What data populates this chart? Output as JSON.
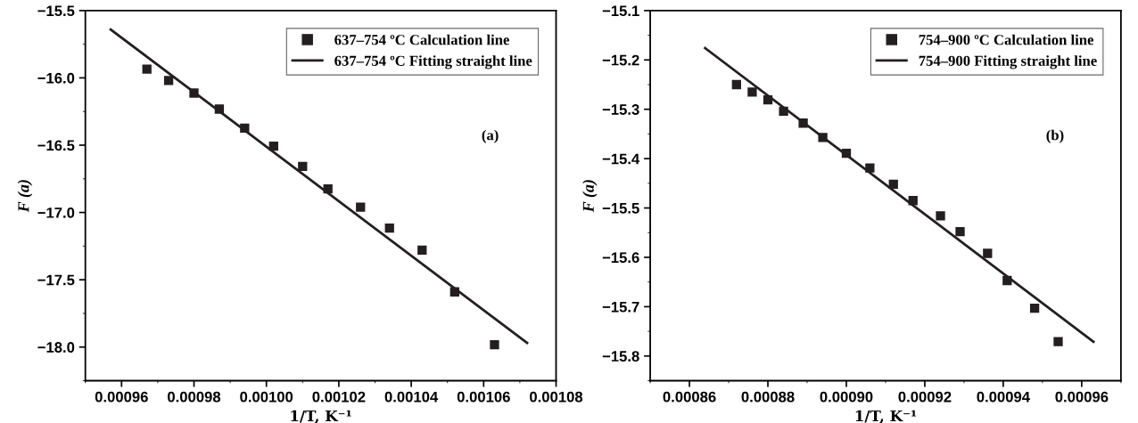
{
  "chart_data": [
    {
      "type": "scatter",
      "xlabel": "1/T, K⁻¹",
      "ylabel": "F (a)",
      "annotations": [
        "(a)"
      ],
      "xlim": [
        0.00095,
        0.00108
      ],
      "xticks": [
        {
          "value": 0.00096,
          "label": "0.00096"
        },
        {
          "value": 0.00098,
          "label": "0.00098"
        },
        {
          "value": 0.001,
          "label": "0.00100"
        },
        {
          "value": 0.00102,
          "label": "0.00102"
        },
        {
          "value": 0.00104,
          "label": "0.00104"
        },
        {
          "value": 0.00106,
          "label": "0.00106"
        },
        {
          "value": 0.00108,
          "label": "0.00108"
        }
      ],
      "ylim": [
        -18.25,
        -15.5
      ],
      "yticks": [
        {
          "value": -18.0,
          "label": "−18.0"
        },
        {
          "value": -17.5,
          "label": "−17.5"
        },
        {
          "value": -17.0,
          "label": "−17.0"
        },
        {
          "value": -16.5,
          "label": "−16.5"
        },
        {
          "value": -16.0,
          "label": "−16.0"
        },
        {
          "value": -15.5,
          "label": "−15.5"
        }
      ],
      "grid": false,
      "legend": "top right",
      "series": [
        {
          "name": "637–754 ºC Calculation line",
          "marker": "square",
          "color": "#231f20",
          "x": [
            0.000967,
            0.000973,
            0.00098,
            0.000987,
            0.000994,
            0.001002,
            0.00101,
            0.001017,
            0.001026,
            0.001034,
            0.001043,
            0.001052,
            0.001063
          ],
          "values": [
            -15.935,
            -16.02,
            -16.113,
            -16.232,
            -16.373,
            -16.508,
            -16.658,
            -16.825,
            -16.96,
            -17.116,
            -17.28,
            -17.59,
            -17.983
          ]
        },
        {
          "name": "637–754 ºC Fitting straight line",
          "type": "line",
          "marker": "none",
          "line_style": "solid",
          "color": "#231f20",
          "x": [
            0.000957,
            0.001072
          ],
          "values": [
            -15.641,
            -17.969
          ]
        }
      ]
    },
    {
      "type": "scatter",
      "xlabel": "1/T, K⁻¹",
      "ylabel": "F (a)",
      "annotations": [
        "(b)"
      ],
      "xlim": [
        0.00085,
        0.00097
      ],
      "xticks": [
        {
          "value": 0.00086,
          "label": "0.00086"
        },
        {
          "value": 0.00088,
          "label": "0.00088"
        },
        {
          "value": 0.0009,
          "label": "0.00090"
        },
        {
          "value": 0.00092,
          "label": "0.00092"
        },
        {
          "value": 0.00094,
          "label": "0.00094"
        },
        {
          "value": 0.00096,
          "label": "0.00096"
        }
      ],
      "ylim": [
        -15.85,
        -15.1
      ],
      "yticks": [
        {
          "value": -15.8,
          "label": "−15.8"
        },
        {
          "value": -15.7,
          "label": "−15.7"
        },
        {
          "value": -15.6,
          "label": "−15.6"
        },
        {
          "value": -15.5,
          "label": "−15.5"
        },
        {
          "value": -15.4,
          "label": "−15.4"
        },
        {
          "value": -15.3,
          "label": "−15.3"
        },
        {
          "value": -15.2,
          "label": "−15.2"
        },
        {
          "value": -15.1,
          "label": "−15.1"
        }
      ],
      "grid": false,
      "legend": "top right",
      "series": [
        {
          "name": "754–900 ºC Calculation line",
          "marker": "square",
          "color": "#231f20",
          "x": [
            0.000872,
            0.000876,
            0.00088,
            0.000884,
            0.000889,
            0.000894,
            0.0009,
            0.000906,
            0.000912,
            0.000917,
            0.000924,
            0.000929,
            0.000936,
            0.000941,
            0.000948,
            0.000954
          ],
          "values": [
            -15.25,
            -15.265,
            -15.281,
            -15.304,
            -15.328,
            -15.357,
            -15.389,
            -15.419,
            -15.452,
            -15.485,
            -15.516,
            -15.548,
            -15.592,
            -15.647,
            -15.703,
            -15.771
          ]
        },
        {
          "name": "754–900 Fitting straight line",
          "type": "line",
          "marker": "none",
          "line_style": "solid",
          "color": "#231f20",
          "x": [
            0.000864,
            0.000963
          ],
          "values": [
            -15.176,
            -15.771
          ]
        }
      ]
    }
  ]
}
